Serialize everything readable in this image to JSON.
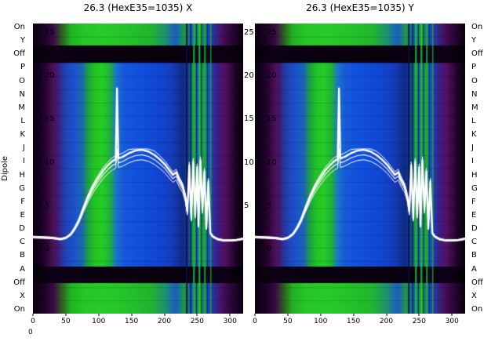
{
  "figure": {
    "left_title": "26.3 (HexE35=1035) X",
    "right_title": "26.3 (HexE35=1035) Y",
    "ylabel": "Dipole",
    "bottom_left_label": "0"
  },
  "axis": {
    "row_labels": [
      "On",
      "Y",
      "Off",
      "P",
      "O",
      "N",
      "M",
      "L",
      "K",
      "J",
      "I",
      "H",
      "G",
      "F",
      "E",
      "D",
      "C",
      "B",
      "A",
      "Off",
      "X",
      "On"
    ],
    "inner_value_labels": [
      "- 25",
      "- 20",
      "- 15",
      "- 10",
      "- 5",
      "- 0"
    ],
    "mid_value_labels": [
      "25",
      "20",
      "15",
      "10",
      "5"
    ],
    "x_tick_labels": [
      "0",
      "50",
      "100",
      "150",
      "200",
      "250",
      "300"
    ]
  },
  "chart_data": {
    "type": "heatmap",
    "panels": [
      {
        "title": "26.3 (HexE35=1035) X"
      },
      {
        "title": "26.3 (HexE35=1035) Y"
      }
    ],
    "x_range": [
      0,
      320
    ],
    "x_ticks": [
      0,
      50,
      100,
      150,
      200,
      250,
      300
    ],
    "row_count": 22,
    "value_axis": {
      "ticks": [
        25,
        20,
        15,
        10,
        5,
        0
      ],
      "v0_frac": 0.7784,
      "v25_frac": 0.0324
    },
    "line_color": "#ffffff",
    "line_series_name": "white overlay traces (dipole response)",
    "line_points": [
      [
        0,
        1.45
      ],
      [
        15,
        1.4
      ],
      [
        30,
        1.35
      ],
      [
        42,
        1.2
      ],
      [
        50,
        1.35
      ],
      [
        58,
        1.8
      ],
      [
        64,
        2.5
      ],
      [
        70,
        3.4
      ],
      [
        77,
        4.8
      ],
      [
        84,
        6.1
      ],
      [
        91,
        7.2
      ],
      [
        99,
        8.2
      ],
      [
        107,
        9.1
      ],
      [
        114,
        9.7
      ],
      [
        121,
        10.2
      ],
      [
        126,
        10.4
      ],
      [
        128,
        18.6
      ],
      [
        130,
        10.5
      ],
      [
        137,
        10.7
      ],
      [
        146,
        11.1
      ],
      [
        156,
        11.4
      ],
      [
        166,
        11.5
      ],
      [
        176,
        11.3
      ],
      [
        185,
        10.9
      ],
      [
        193,
        10.4
      ],
      [
        201,
        9.8
      ],
      [
        207,
        9.2
      ],
      [
        213,
        8.6
      ],
      [
        218,
        8.9
      ],
      [
        223,
        8.0
      ],
      [
        228,
        7.3
      ],
      [
        232,
        6.1
      ],
      [
        235,
        4.4
      ],
      [
        238,
        9.7
      ],
      [
        241,
        3.6
      ],
      [
        244,
        10.1
      ],
      [
        247,
        4.0
      ],
      [
        250,
        9.5
      ],
      [
        252,
        2.8
      ],
      [
        255,
        10.3
      ],
      [
        258,
        4.6
      ],
      [
        261,
        9.0
      ],
      [
        264,
        2.5
      ],
      [
        267,
        7.9
      ],
      [
        270,
        1.9
      ],
      [
        274,
        1.5
      ],
      [
        281,
        1.2
      ],
      [
        290,
        1.05
      ],
      [
        300,
        1.05
      ],
      [
        310,
        1.1
      ],
      [
        320,
        1.25
      ]
    ],
    "slabs": [
      {
        "y0": 0.0,
        "y1": 0.076,
        "stops": [
          [
            0.0,
            "#0b0011"
          ],
          [
            0.06,
            "#1e0428"
          ],
          [
            0.1,
            "#3c0c48"
          ],
          [
            0.14,
            "#2e641e"
          ],
          [
            0.18,
            "#23b224"
          ],
          [
            0.24,
            "#26c626"
          ],
          [
            0.34,
            "#27cb27"
          ],
          [
            0.46,
            "#24c22a"
          ],
          [
            0.56,
            "#21b530"
          ],
          [
            0.63,
            "#1e9070"
          ],
          [
            0.68,
            "#1b5cc4"
          ],
          [
            0.72,
            "#1e9c3e"
          ],
          [
            0.755,
            "#1a58c8"
          ],
          [
            0.795,
            "#20a634"
          ],
          [
            0.83,
            "#194ec0"
          ],
          [
            0.865,
            "#2c2e92"
          ],
          [
            0.9,
            "#480f5e"
          ],
          [
            0.94,
            "#2c083a"
          ],
          [
            1.0,
            "#0b0010"
          ]
        ]
      },
      {
        "y0": 0.076,
        "y1": 0.136,
        "stops": [
          [
            0.0,
            "#050007"
          ],
          [
            0.08,
            "#0e0016"
          ],
          [
            0.3,
            "#080010"
          ],
          [
            0.5,
            "#0a020e"
          ],
          [
            0.7,
            "#080010"
          ],
          [
            0.92,
            "#0e0016"
          ],
          [
            1.0,
            "#050007"
          ]
        ]
      },
      {
        "y0": 0.136,
        "y1": 0.838,
        "stops": [
          [
            0.0,
            "#0a0010"
          ],
          [
            0.035,
            "#140020"
          ],
          [
            0.065,
            "#2c0536"
          ],
          [
            0.095,
            "#4a1156"
          ],
          [
            0.115,
            "#45186a"
          ],
          [
            0.135,
            "#2c3296"
          ],
          [
            0.165,
            "#1e48c0"
          ],
          [
            0.2,
            "#1b55cc"
          ],
          [
            0.235,
            "#1a67b0"
          ],
          [
            0.26,
            "#1e9e46"
          ],
          [
            0.29,
            "#22c324"
          ],
          [
            0.33,
            "#25cc26"
          ],
          [
            0.365,
            "#20b238"
          ],
          [
            0.395,
            "#1b74cc"
          ],
          [
            0.43,
            "#165ada"
          ],
          [
            0.48,
            "#1252de"
          ],
          [
            0.54,
            "#104cda"
          ],
          [
            0.6,
            "#1246d0"
          ],
          [
            0.65,
            "#153ec2"
          ],
          [
            0.69,
            "#13339e"
          ],
          [
            0.715,
            "#0f2b84"
          ],
          [
            0.74,
            "#1644ac"
          ],
          [
            0.765,
            "#1a9a46"
          ],
          [
            0.785,
            "#1a5ec8"
          ],
          [
            0.81,
            "#1fa43a"
          ],
          [
            0.835,
            "#1756c4"
          ],
          [
            0.86,
            "#2c2f9a"
          ],
          [
            0.885,
            "#401a80"
          ],
          [
            0.91,
            "#521264"
          ],
          [
            0.935,
            "#3c0c48"
          ],
          [
            0.965,
            "#1c0424"
          ],
          [
            1.0,
            "#0b0011"
          ]
        ]
      },
      {
        "y0": 0.838,
        "y1": 0.895,
        "stops": [
          [
            0.0,
            "#050007"
          ],
          [
            0.08,
            "#0e0016"
          ],
          [
            0.3,
            "#080010"
          ],
          [
            0.5,
            "#0a020e"
          ],
          [
            0.7,
            "#080010"
          ],
          [
            0.92,
            "#0e0016"
          ],
          [
            1.0,
            "#050007"
          ]
        ]
      },
      {
        "y0": 0.895,
        "y1": 1.0,
        "stops": [
          [
            0.0,
            "#0b0011"
          ],
          [
            0.06,
            "#1e0428"
          ],
          [
            0.1,
            "#3c0c48"
          ],
          [
            0.14,
            "#2e641e"
          ],
          [
            0.18,
            "#23b224"
          ],
          [
            0.24,
            "#26c626"
          ],
          [
            0.34,
            "#27cb27"
          ],
          [
            0.46,
            "#24c22a"
          ],
          [
            0.56,
            "#21b530"
          ],
          [
            0.63,
            "#1e9070"
          ],
          [
            0.68,
            "#1b5cc4"
          ],
          [
            0.72,
            "#1e9c3e"
          ],
          [
            0.755,
            "#1a58c8"
          ],
          [
            0.795,
            "#20a634"
          ],
          [
            0.83,
            "#194ec0"
          ],
          [
            0.865,
            "#2c2e92"
          ],
          [
            0.9,
            "#480f5e"
          ],
          [
            0.94,
            "#2c083a"
          ],
          [
            1.0,
            "#0b0010"
          ]
        ]
      }
    ],
    "stripes": [
      {
        "x": 0.728,
        "w": 0.008,
        "color": "#0a1236",
        "alpha": 0.85
      },
      {
        "x": 0.748,
        "w": 0.005,
        "color": "#060a20",
        "alpha": 0.8
      },
      {
        "x": 0.762,
        "w": 0.008,
        "color": "#1fc030",
        "alpha": 0.9
      },
      {
        "x": 0.776,
        "w": 0.004,
        "color": "#0a1240",
        "alpha": 0.8
      },
      {
        "x": 0.788,
        "w": 0.008,
        "color": "#22c62a",
        "alpha": 0.9
      },
      {
        "x": 0.8,
        "w": 0.004,
        "color": "#0a1240",
        "alpha": 0.75
      },
      {
        "x": 0.814,
        "w": 0.008,
        "color": "#1fb42e",
        "alpha": 0.85
      },
      {
        "x": 0.828,
        "w": 0.004,
        "color": "#101a50",
        "alpha": 0.7
      },
      {
        "x": 0.843,
        "w": 0.006,
        "color": "#1fae32",
        "alpha": 0.8
      }
    ]
  }
}
